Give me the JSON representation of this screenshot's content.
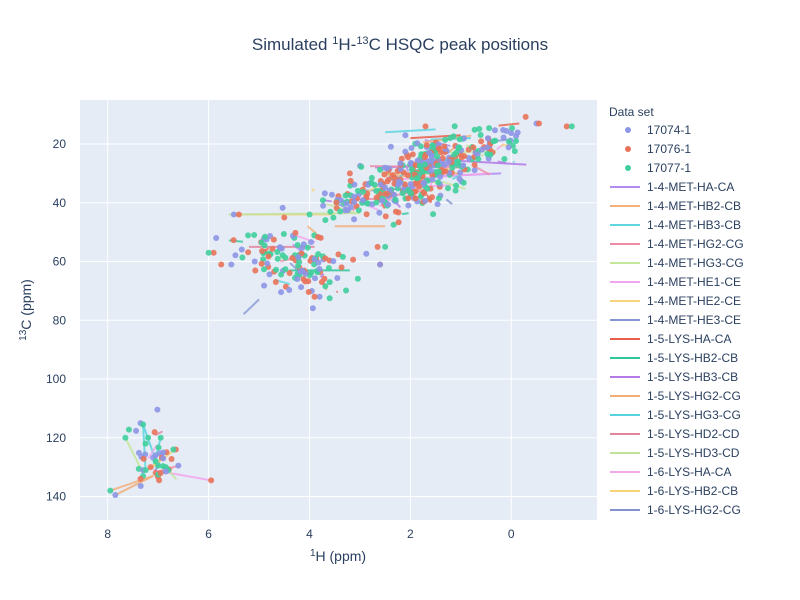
{
  "chart_data": {
    "type": "scatter",
    "title": {
      "prefix": "Simulated ",
      "sup1": "1",
      "mid": "H-",
      "sup2": "13",
      "suffix": "C HSQC peak positions"
    },
    "xlabel": {
      "sup": "1",
      "text": "H (ppm)"
    },
    "ylabel": {
      "sup": "13",
      "text": "C (ppm)"
    },
    "x_range": [
      8.55,
      -1.7
    ],
    "y_range": [
      5,
      148
    ],
    "x_reversed": true,
    "y_reversed": true,
    "x_ticks": [
      8,
      6,
      4,
      2,
      0
    ],
    "y_ticks": [
      20,
      40,
      60,
      80,
      100,
      120,
      140
    ],
    "grid": true,
    "legend_title": "Data set",
    "legend_placement": "right",
    "series": [
      {
        "name": "17074-1",
        "color": "#8c96e6"
      },
      {
        "name": "17076-1",
        "color": "#e8735a"
      },
      {
        "name": "17077-1",
        "color": "#3fcf9c"
      }
    ],
    "link_series": [
      {
        "name": "1-4-MET-HA-CA",
        "color": "#b18cf0"
      },
      {
        "name": "1-4-MET-HB2-CB",
        "color": "#f4b07a"
      },
      {
        "name": "1-4-MET-HB3-CB",
        "color": "#5fd6df"
      },
      {
        "name": "1-4-MET-HG2-CG",
        "color": "#ee8ca8"
      },
      {
        "name": "1-4-MET-HG3-CG",
        "color": "#c6e69a"
      },
      {
        "name": "1-4-MET-HE1-CE",
        "color": "#f3a4ef"
      },
      {
        "name": "1-4-MET-HE2-CE",
        "color": "#f5d47e"
      },
      {
        "name": "1-4-MET-HE3-CE",
        "color": "#8797d6"
      },
      {
        "name": "1-5-LYS-HA-CA",
        "color": "#e8604b"
      },
      {
        "name": "1-5-LYS-HB2-CB",
        "color": "#2fc79a"
      },
      {
        "name": "1-5-LYS-HB3-CB",
        "color": "#b37ae6"
      },
      {
        "name": "1-5-LYS-HG2-CG",
        "color": "#f1ad76"
      },
      {
        "name": "1-5-LYS-HG3-CG",
        "color": "#57d3e0"
      },
      {
        "name": "1-5-LYS-HD2-CD",
        "color": "#e0859c"
      },
      {
        "name": "1-5-LYS-HD3-CD",
        "color": "#c2e29c"
      },
      {
        "name": "1-6-LYS-HA-CA",
        "color": "#f2a8ea"
      },
      {
        "name": "1-6-LYS-HB2-CB",
        "color": "#f3d27a"
      },
      {
        "name": "1-6-LYS-HG2-CG",
        "color": "#8391d0"
      }
    ],
    "clusters": [
      {
        "cx": 4.5,
        "cy": 58,
        "sx": 0.5,
        "sy": 5,
        "n": 80
      },
      {
        "cx": 3.85,
        "cy": 64,
        "sx": 0.35,
        "sy": 4,
        "n": 40
      },
      {
        "cx": 2.1,
        "cy": 33,
        "sx": 0.45,
        "sy": 4,
        "n": 140
      },
      {
        "cx": 3.0,
        "cy": 40,
        "sx": 0.45,
        "sy": 3,
        "n": 60
      },
      {
        "cx": 1.1,
        "cy": 22,
        "sx": 0.45,
        "sy": 4,
        "n": 100
      },
      {
        "cx": 1.5,
        "cy": 28,
        "sx": 0.4,
        "sy": 3,
        "n": 50
      },
      {
        "cx": 0.2,
        "cy": 18,
        "sx": 0.3,
        "sy": 3,
        "n": 20
      },
      {
        "cx": 7.1,
        "cy": 127,
        "sx": 0.25,
        "sy": 5,
        "n": 20
      }
    ],
    "points": [
      [
        5.5,
        44,
        0
      ],
      [
        5.4,
        44,
        1
      ],
      [
        5.85,
        52,
        0
      ],
      [
        5.9,
        57,
        1
      ],
      [
        6.0,
        57,
        2
      ],
      [
        5.75,
        61,
        1
      ],
      [
        5.55,
        61,
        0
      ],
      [
        2.6,
        61,
        1
      ],
      [
        2.6,
        61,
        0
      ],
      [
        2.5,
        55,
        2
      ],
      [
        2.65,
        55,
        1
      ],
      [
        3.6,
        67,
        2
      ],
      [
        3.6,
        72.5,
        2
      ],
      [
        3.8,
        72,
        0
      ],
      [
        3.9,
        72,
        1
      ],
      [
        -0.5,
        13,
        0
      ],
      [
        -0.55,
        13,
        1
      ],
      [
        -1.1,
        14,
        1
      ],
      [
        -1.2,
        14,
        2
      ],
      [
        1.7,
        14,
        1
      ],
      [
        2.1,
        17,
        0
      ],
      [
        3.2,
        30,
        1
      ],
      [
        4.0,
        44,
        2
      ],
      [
        4.5,
        45,
        1
      ],
      [
        7.95,
        138,
        2
      ],
      [
        7.85,
        139.5,
        0
      ],
      [
        5.95,
        134.5,
        1
      ],
      [
        7.65,
        120,
        2
      ],
      [
        7.35,
        115,
        0
      ],
      [
        7.3,
        115.5,
        2
      ],
      [
        7.2,
        120,
        2
      ],
      [
        7.25,
        122,
        2
      ],
      [
        6.95,
        120,
        2
      ],
      [
        6.9,
        125,
        0
      ],
      [
        6.65,
        124,
        1
      ],
      [
        6.7,
        124,
        2
      ],
      [
        6.9,
        127,
        0
      ],
      [
        6.6,
        129.5,
        0
      ],
      [
        6.85,
        130,
        2
      ],
      [
        7.05,
        126,
        0
      ],
      [
        7.05,
        128,
        2
      ],
      [
        7.3,
        131,
        0
      ],
      [
        7.3,
        133,
        2
      ],
      [
        7.35,
        134,
        1
      ],
      [
        7.05,
        132,
        1
      ],
      [
        7.0,
        132.5,
        2
      ],
      [
        6.95,
        132,
        1
      ],
      [
        6.8,
        131,
        2
      ],
      [
        6.85,
        131.5,
        0
      ],
      [
        7.0,
        129.5,
        2
      ],
      [
        7.25,
        131,
        2
      ],
      [
        7.15,
        130,
        1
      ]
    ],
    "links": [
      [
        5.55,
        44,
        3.5,
        44,
        6
      ],
      [
        5.6,
        44,
        3.0,
        43.5,
        14
      ],
      [
        5.2,
        55,
        3.9,
        55,
        13
      ],
      [
        2.7,
        28,
        0.9,
        27,
        10
      ],
      [
        2.8,
        27.5,
        1.0,
        28,
        3
      ],
      [
        2.5,
        30,
        1.0,
        30,
        11
      ],
      [
        1.8,
        23,
        0.3,
        22.5,
        4
      ],
      [
        2.0,
        18,
        1.0,
        17,
        8
      ],
      [
        2.5,
        16,
        1.5,
        15,
        2
      ],
      [
        3.0,
        36,
        2.0,
        35,
        7
      ],
      [
        3.5,
        48,
        2.5,
        48,
        1
      ],
      [
        4.4,
        63,
        3.2,
        63,
        9
      ],
      [
        1.8,
        25,
        -0.3,
        27,
        10
      ],
      [
        0.2,
        30,
        1.5,
        31,
        0
      ],
      [
        0.4,
        30,
        2.2,
        32,
        5
      ],
      [
        2.3,
        35,
        1.2,
        34,
        15
      ],
      [
        1.6,
        18.5,
        0.8,
        18,
        12
      ],
      [
        2.5,
        38,
        1.8,
        36,
        3
      ],
      [
        7.95,
        138,
        7.1,
        133,
        1
      ],
      [
        7.85,
        139.5,
        7.1,
        133,
        11
      ],
      [
        5.95,
        134.5,
        7.1,
        131,
        5
      ],
      [
        7.65,
        120,
        7.3,
        132,
        4
      ],
      [
        7.3,
        115.5,
        7.25,
        131,
        2
      ],
      [
        7.3,
        115.5,
        7.0,
        130,
        12
      ],
      [
        6.95,
        120,
        7.1,
        130,
        2
      ],
      [
        6.65,
        124,
        7.15,
        130,
        6
      ],
      [
        6.9,
        125,
        7.05,
        131,
        17
      ],
      [
        6.9,
        127,
        7.2,
        131,
        16
      ],
      [
        6.6,
        129.5,
        7.0,
        131.5,
        3
      ]
    ]
  }
}
